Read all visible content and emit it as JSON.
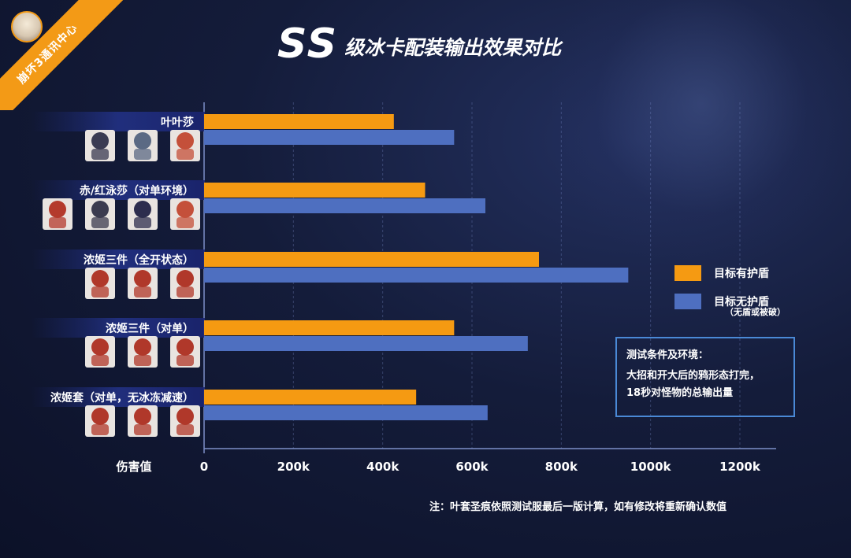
{
  "badge": {
    "text": "崩坏3通讯中心"
  },
  "title": {
    "main": "SS",
    "sub": "级冰卡配装输出效果对比"
  },
  "colors": {
    "with_shield": "#f59a12",
    "no_shield": "#4e6fc0",
    "box_border": "#4a89d6",
    "badge": "#f39a16"
  },
  "legend": {
    "items": [
      {
        "label": "目标有护盾",
        "color": "#f59a12"
      },
      {
        "label": "目标无护盾",
        "color": "#4e6fc0"
      }
    ],
    "note": "（无盾或被破）"
  },
  "conditions": {
    "heading": "测试条件及环境：",
    "lines": [
      "大招和开大后的鸦形态打完，",
      "18秒对怪物的总输出量"
    ]
  },
  "footnote": "注：叶套圣痕依照测试服最后一版计算，如有修改将重新确认数值",
  "chart_data": {
    "type": "bar",
    "orientation": "horizontal",
    "categories": [
      "叶叶莎",
      "赤/红泳莎（对单环境）",
      "浓姬三件（全开状态）",
      "浓姬三件（对单）",
      "浓姬套（对单，无冰冻减速）"
    ],
    "series": [
      {
        "name": "目标有护盾",
        "values": [
          425000,
          495000,
          750000,
          560000,
          475000
        ]
      },
      {
        "name": "目标无护盾",
        "values": [
          560000,
          630000,
          950000,
          725000,
          635000
        ]
      }
    ],
    "xlabel": "伤害值",
    "xlim": [
      0,
      1200000
    ],
    "xticks": [
      {
        "value": 0,
        "label": "0"
      },
      {
        "value": 200000,
        "label": "200k"
      },
      {
        "value": 400000,
        "label": "400k"
      },
      {
        "value": 600000,
        "label": "600k"
      },
      {
        "value": 800000,
        "label": "800k"
      },
      {
        "value": 1000000,
        "label": "1000k"
      },
      {
        "value": 1200000,
        "label": "1200k"
      }
    ],
    "grid": true,
    "legend_position": "right"
  }
}
